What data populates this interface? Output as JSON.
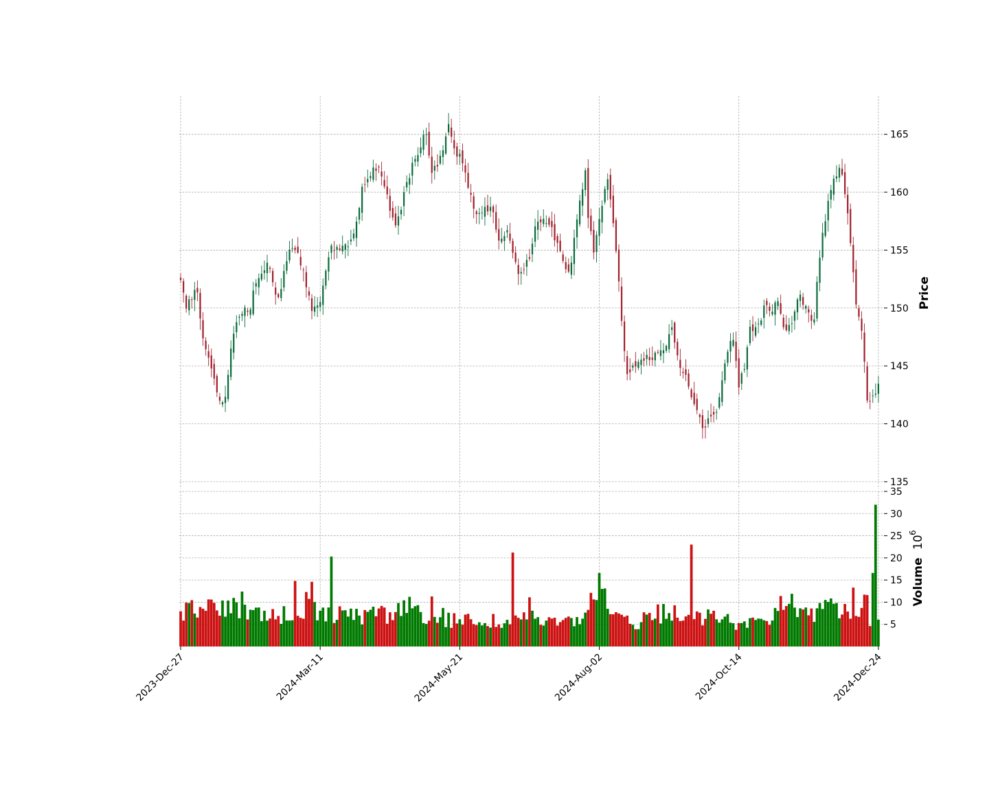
{
  "chart_data": {
    "type": "candlestick",
    "title": "",
    "style": {
      "up_color": "#0a6b3c",
      "down_color": "#a0202c",
      "vol_up_color": "#007a00",
      "vol_down_color": "#cc1212",
      "grid_color": "#a8a8a8"
    },
    "price_panel": {
      "ylabel": "Price",
      "ylim": [
        134.4,
        168.3
      ],
      "yticks": [
        135,
        140,
        145,
        150,
        155,
        160,
        165
      ],
      "ytick_labels": [
        "135",
        "140",
        "145",
        "150",
        "155",
        "160",
        "165"
      ]
    },
    "volume_panel": {
      "ylabel": "Volume",
      "scale_label": "10",
      "scale_exponent": "6",
      "ylim": [
        0,
        35
      ],
      "yticks": [
        5,
        10,
        15,
        20,
        25,
        30,
        35
      ],
      "ytick_labels": [
        "5",
        "10",
        "15",
        "20",
        "25",
        "30",
        "35"
      ]
    },
    "x_axis": {
      "xlim": [
        -0.5,
        252
      ],
      "ticks": [
        0,
        50,
        100,
        150,
        200,
        250
      ],
      "tick_labels": [
        "2023-Dec-27",
        "2024-Mar-11",
        "2024-May-21",
        "2024-Aug-02",
        "2024-Oct-14",
        "2024-Dec-24"
      ]
    },
    "close_anchors": [
      [
        0,
        152.1
      ],
      [
        2,
        150.0
      ],
      [
        6,
        151.8
      ],
      [
        9,
        146.3
      ],
      [
        11,
        145.2
      ],
      [
        13,
        143.0
      ],
      [
        15,
        142.0
      ],
      [
        17,
        142.6
      ],
      [
        19,
        147.5
      ],
      [
        22,
        149.2
      ],
      [
        26,
        150.2
      ],
      [
        28,
        152.0
      ],
      [
        31,
        153.5
      ],
      [
        33,
        153.9
      ],
      [
        36,
        150.4
      ],
      [
        38,
        152.1
      ],
      [
        40,
        155.1
      ],
      [
        43,
        155.0
      ],
      [
        46,
        153.0
      ],
      [
        49,
        149.7
      ],
      [
        51,
        150.0
      ],
      [
        53,
        151.6
      ],
      [
        56,
        155.2
      ],
      [
        60,
        155.3
      ],
      [
        63,
        155.6
      ],
      [
        66,
        157.8
      ],
      [
        68,
        160.8
      ],
      [
        71,
        161.7
      ],
      [
        74,
        162.4
      ],
      [
        77,
        159.6
      ],
      [
        80,
        157.0
      ],
      [
        83,
        159.5
      ],
      [
        86,
        162.1
      ],
      [
        89,
        163.4
      ],
      [
        91,
        165.8
      ],
      [
        93,
        162.0
      ],
      [
        96,
        162.2
      ],
      [
        98,
        163.8
      ],
      [
        100,
        166.2
      ],
      [
        102,
        163.6
      ],
      [
        105,
        162.8
      ],
      [
        107,
        160.5
      ],
      [
        110,
        157.9
      ],
      [
        113,
        158.4
      ],
      [
        116,
        158.7
      ],
      [
        119,
        155.6
      ],
      [
        122,
        156.7
      ],
      [
        126,
        152.8
      ],
      [
        129,
        153.8
      ],
      [
        131,
        155.5
      ],
      [
        133,
        157.8
      ],
      [
        136,
        157.5
      ],
      [
        139,
        156.5
      ],
      [
        142,
        154.2
      ],
      [
        145,
        153.1
      ],
      [
        147,
        156.3
      ],
      [
        149,
        159.5
      ],
      [
        151,
        161.8
      ],
      [
        152,
        157.3
      ],
      [
        154,
        155.1
      ],
      [
        156,
        157.7
      ],
      [
        159,
        161.2
      ],
      [
        162,
        156.0
      ],
      [
        164,
        150.1
      ],
      [
        166,
        144.5
      ],
      [
        168,
        144.8
      ],
      [
        171,
        145.0
      ],
      [
        174,
        145.9
      ],
      [
        177,
        145.8
      ],
      [
        180,
        146.4
      ],
      [
        183,
        148.3
      ],
      [
        186,
        145.3
      ],
      [
        189,
        143.5
      ],
      [
        192,
        141.1
      ],
      [
        195,
        139.2
      ],
      [
        197,
        140.5
      ],
      [
        200,
        141.1
      ],
      [
        203,
        145.2
      ],
      [
        206,
        147.7
      ],
      [
        208,
        142.9
      ],
      [
        210,
        145.0
      ],
      [
        212,
        148.2
      ],
      [
        215,
        148.3
      ],
      [
        218,
        150.3
      ],
      [
        220,
        149.3
      ],
      [
        222,
        151.2
      ],
      [
        225,
        148.2
      ],
      [
        228,
        149.0
      ],
      [
        230,
        151.2
      ],
      [
        232,
        150.3
      ],
      [
        234,
        149.5
      ],
      [
        236,
        148.8
      ],
      [
        238,
        154.5
      ],
      [
        240,
        157.2
      ],
      [
        242,
        160.0
      ],
      [
        244,
        161.4
      ],
      [
        246,
        162.2
      ],
      [
        248,
        159.3
      ],
      [
        250,
        155.0
      ],
      [
        252,
        149.5
      ],
      [
        254,
        148.0
      ],
      [
        256,
        141.5
      ],
      [
        258,
        142.7
      ],
      [
        260,
        143.3
      ]
    ],
    "volume_anchors": [
      [
        0,
        8.2
      ],
      [
        10,
        9.0
      ],
      [
        20,
        9.8
      ],
      [
        27,
        8.5
      ],
      [
        33,
        7.8
      ],
      [
        40,
        7.2
      ],
      [
        45,
        8.5
      ],
      [
        50,
        8.8
      ],
      [
        55,
        8.0
      ],
      [
        60,
        7.9
      ],
      [
        70,
        7.3
      ],
      [
        80,
        7.8
      ],
      [
        85,
        9.2
      ],
      [
        90,
        7.6
      ],
      [
        95,
        6.5
      ],
      [
        100,
        6.1
      ],
      [
        105,
        6.0
      ],
      [
        110,
        6.5
      ],
      [
        115,
        6.3
      ],
      [
        120,
        6.2
      ],
      [
        125,
        7.0
      ],
      [
        130,
        6.6
      ],
      [
        135,
        6.0
      ],
      [
        140,
        6.3
      ],
      [
        145,
        5.9
      ],
      [
        150,
        6.0
      ],
      [
        152,
        12.0
      ],
      [
        155,
        8.6
      ],
      [
        160,
        6.8
      ],
      [
        165,
        6.2
      ],
      [
        170,
        5.8
      ],
      [
        175,
        7.0
      ],
      [
        180,
        8.0
      ],
      [
        185,
        7.2
      ],
      [
        190,
        6.5
      ],
      [
        195,
        7.2
      ],
      [
        200,
        6.4
      ],
      [
        205,
        6.0
      ],
      [
        210,
        5.4
      ],
      [
        215,
        5.8
      ],
      [
        220,
        6.5
      ],
      [
        225,
        8.0
      ],
      [
        230,
        8.3
      ],
      [
        235,
        7.2
      ],
      [
        240,
        8.5
      ],
      [
        245,
        9.0
      ],
      [
        250,
        8.5
      ],
      [
        252,
        10.0
      ],
      [
        258,
        6.0
      ],
      [
        260,
        6.0
      ]
    ],
    "volume_spikes": [
      [
        11,
        10.6
      ],
      [
        22,
        12.4
      ],
      [
        41,
        14.8
      ],
      [
        45,
        12.3
      ],
      [
        47,
        14.6
      ],
      [
        54,
        20.3
      ],
      [
        90,
        11.3
      ],
      [
        94,
        8.7
      ],
      [
        119,
        21.2
      ],
      [
        125,
        11.1
      ],
      [
        150,
        16.6
      ],
      [
        151,
        13.0
      ],
      [
        152,
        13.1
      ],
      [
        171,
        9.5
      ],
      [
        173,
        9.6
      ],
      [
        177,
        9.3
      ],
      [
        183,
        23.0
      ],
      [
        204,
        6.4
      ],
      [
        213,
        8.7
      ],
      [
        215,
        11.4
      ],
      [
        219,
        11.9
      ],
      [
        224,
        8.8
      ],
      [
        231,
        10.5
      ],
      [
        238,
        9.6
      ],
      [
        241,
        13.3
      ],
      [
        243,
        6.7
      ],
      [
        245,
        11.7
      ],
      [
        246,
        11.6
      ],
      [
        248,
        16.6
      ],
      [
        249,
        32.0
      ],
      [
        251,
        2.4
      ]
    ]
  }
}
